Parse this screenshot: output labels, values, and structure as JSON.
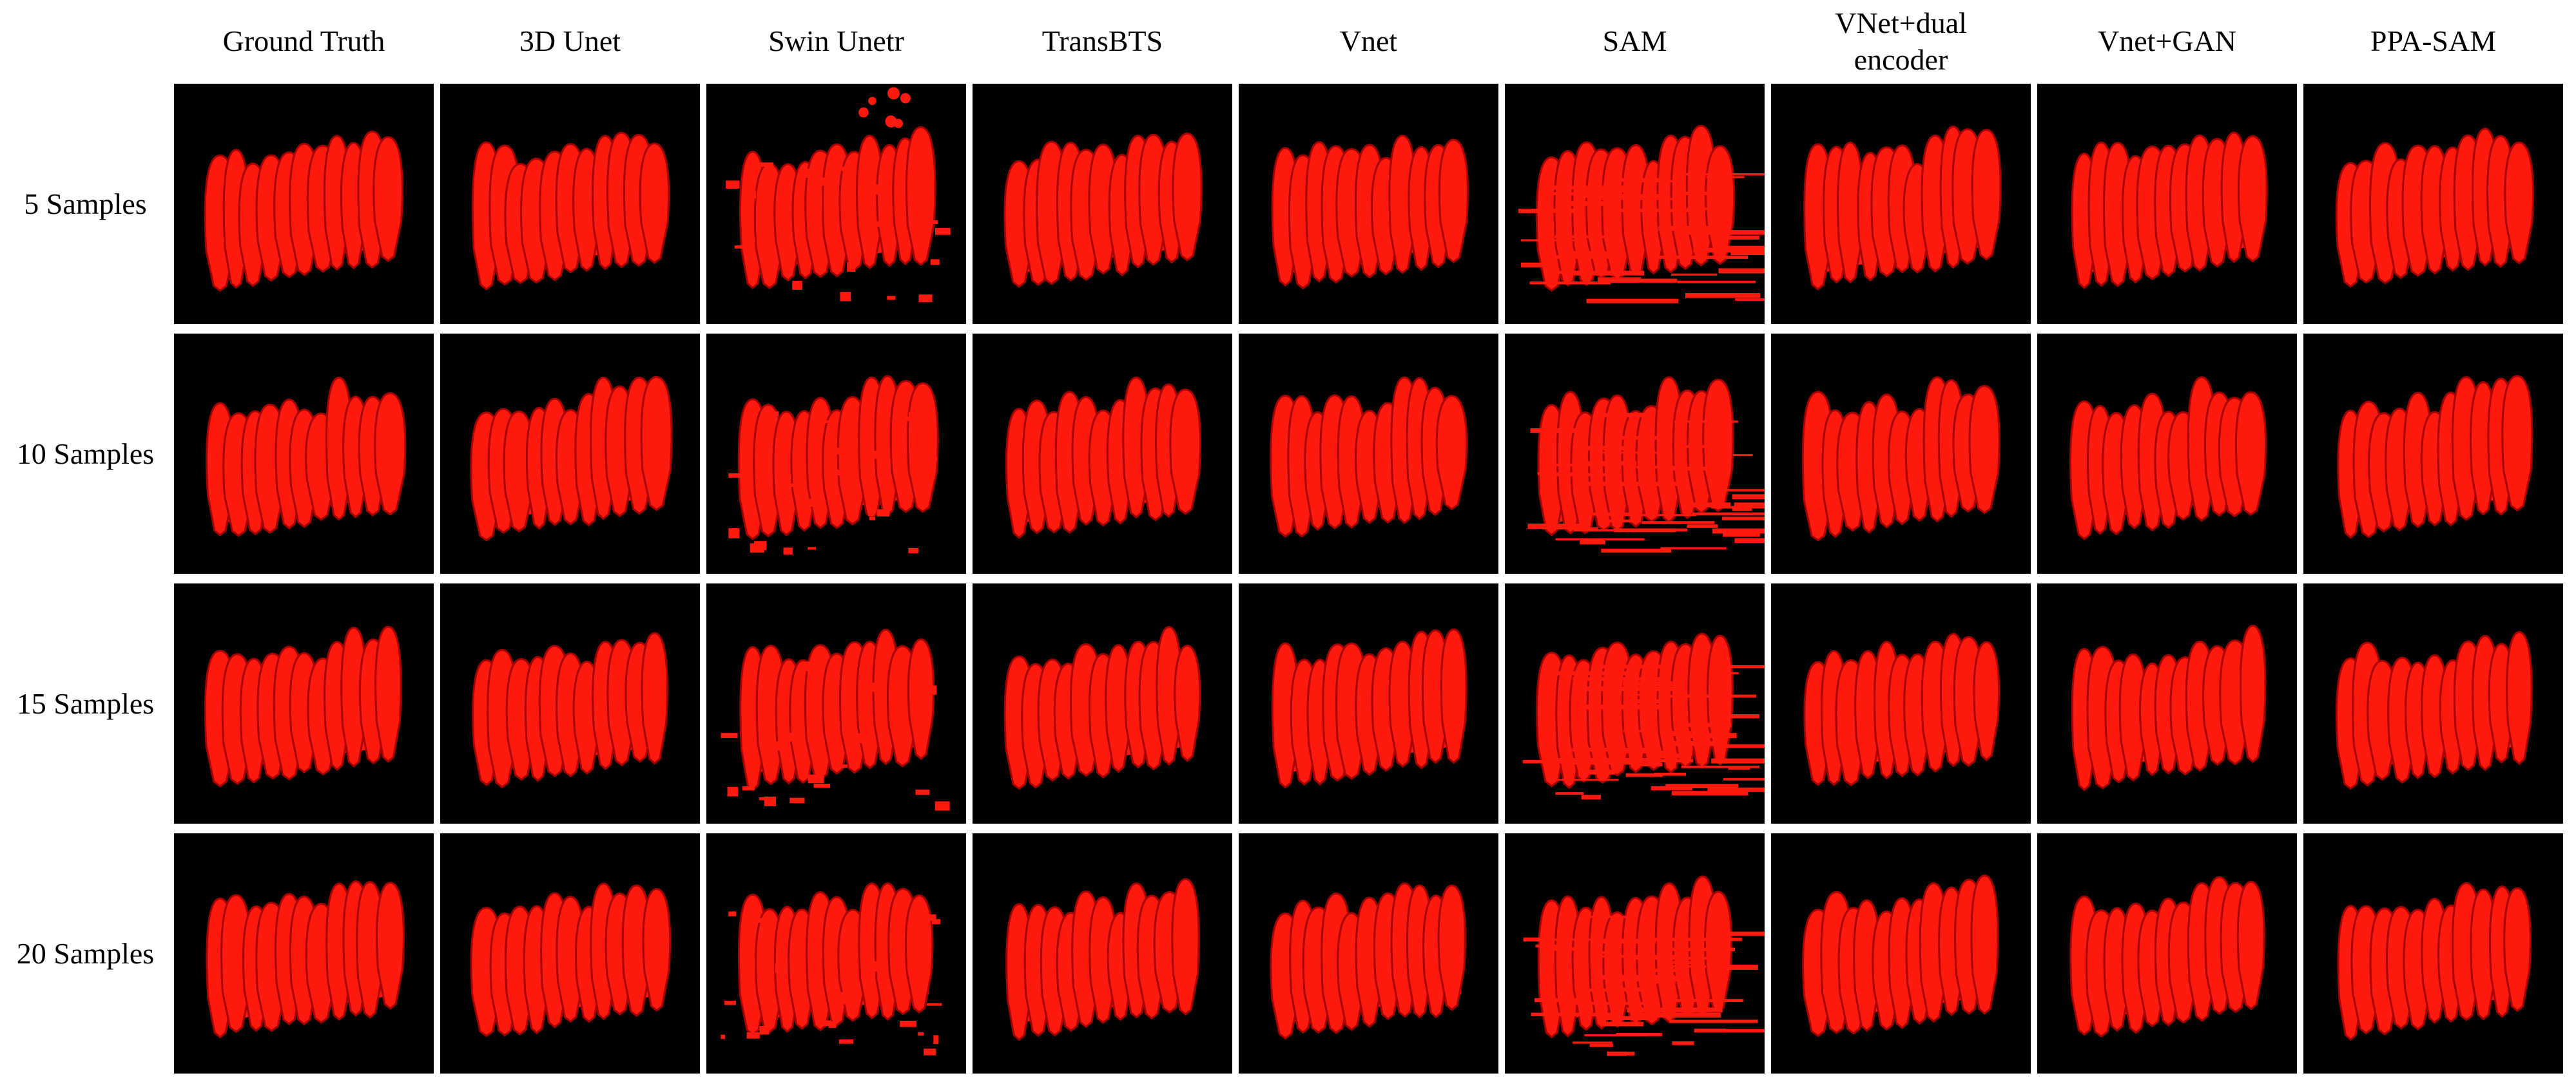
{
  "columns": [
    {
      "label": "Ground Truth"
    },
    {
      "label": "3D Unet"
    },
    {
      "label": "Swin Unetr"
    },
    {
      "label": "TransBTS"
    },
    {
      "label": "Vnet"
    },
    {
      "label": "SAM"
    },
    {
      "label": "VNet+dual\nencoder"
    },
    {
      "label": "Vnet+GAN"
    },
    {
      "label": "PPA-SAM"
    }
  ],
  "rows": [
    {
      "label": "5 Samples"
    },
    {
      "label": "10 Samples"
    },
    {
      "label": "15 Samples"
    },
    {
      "label": "20 Samples"
    }
  ],
  "colors": {
    "background": "#000000",
    "segmentation": "#ff1a0f",
    "shade": "#a80000"
  }
}
